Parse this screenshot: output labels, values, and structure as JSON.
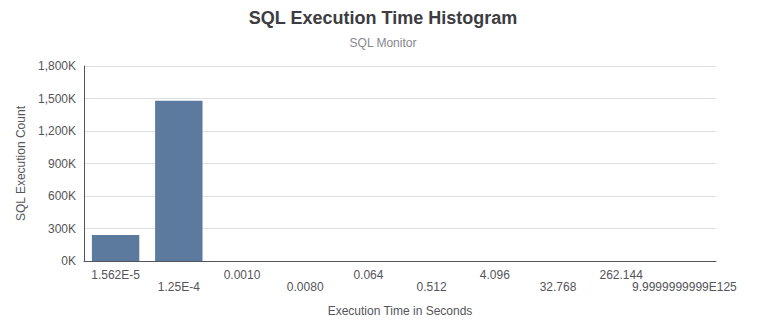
{
  "chart_data": {
    "type": "bar",
    "title": "SQL Execution Time Histogram",
    "subtitle": "SQL Monitor",
    "x_label": "Execution Time in Seconds",
    "y_label": "SQL Execution Count",
    "categories": [
      "1.562E-5",
      "1.25E-4",
      "0.0010",
      "0.0080",
      "0.064",
      "0.512",
      "4.096",
      "32.768",
      "262.144",
      "9.9999999999E125"
    ],
    "values": [
      240000,
      1480000,
      0,
      0,
      0,
      0,
      0,
      0,
      0,
      0
    ],
    "color": "#5b7a9e",
    "ylim": [
      0,
      1800000
    ],
    "yticks": [
      {
        "value": 0,
        "label": "0K"
      },
      {
        "value": 300000,
        "label": "300K"
      },
      {
        "value": 600000,
        "label": "600K"
      },
      {
        "value": 900000,
        "label": "900K"
      },
      {
        "value": 1200000,
        "label": "1,200K"
      },
      {
        "value": 1500000,
        "label": "1,500K"
      },
      {
        "value": 1800000,
        "label": "1,800K"
      }
    ],
    "grid": true
  }
}
